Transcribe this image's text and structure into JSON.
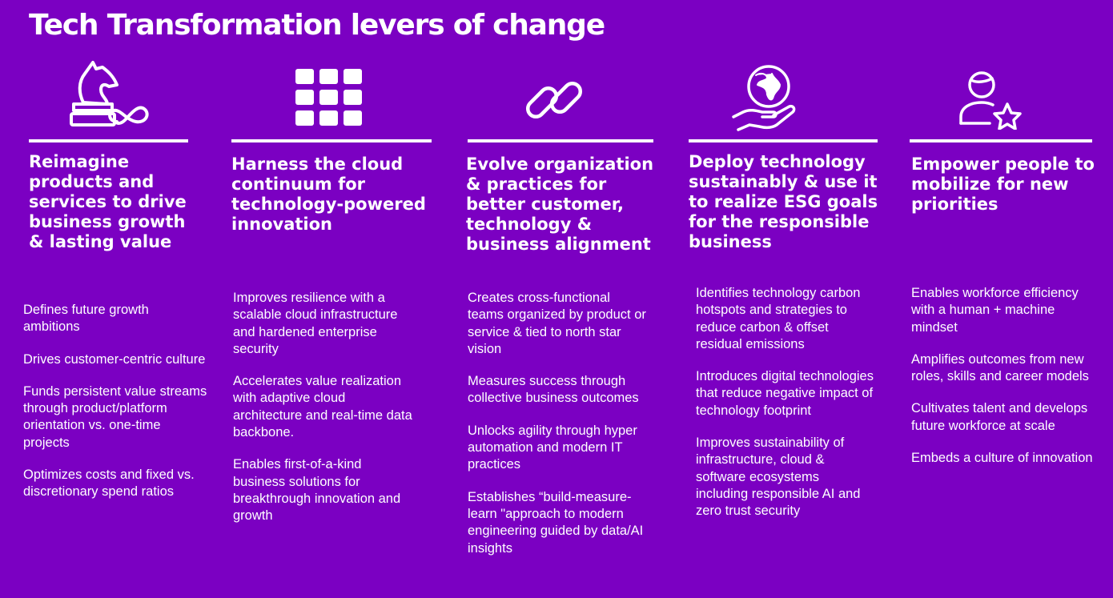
{
  "title": "Tech Transformation levers of change",
  "colors": {
    "background": "#7B00C2",
    "foreground": "#FFFFFF"
  },
  "columns": [
    {
      "icon": "chess-knight-infinity-icon",
      "heading": "Reimagine products and services to drive business growth & lasting value",
      "bullets": [
        "Defines future growth ambitions",
        "Drives customer-centric culture",
        "Funds persistent value streams through product/platform orientation vs. one-time projects",
        "Optimizes costs and fixed vs. discretionary spend ratios"
      ]
    },
    {
      "icon": "grid-squares-icon",
      "heading": "Harness the cloud continuum for technology-powered innovation",
      "bullets": [
        "Improves resilience  with a scalable cloud infrastructure  and hardened enterprise security",
        "Accelerates value realization with adaptive cloud architecture and real-time  data backbone.",
        "Enables first-of-a-kind business solutions for breakthrough innovation and growth"
      ]
    },
    {
      "icon": "chain-link-icon",
      "heading": "Evolve organization & practices for better customer, technology & business alignment",
      "bullets": [
        "Creates cross-functional teams organized by product or service  & tied to north star vision",
        "Measures success through collective business outcomes",
        "Unlocks agility through hyper automation and modern IT practices",
        "Establishes “build-measure-learn \"approach to modern engineering guided by data/AI insights"
      ]
    },
    {
      "icon": "globe-in-hand-icon",
      "heading": "Deploy technology sustainably & use it to realize ESG goals for the responsible business",
      "bullets": [
        "Identifies technology carbon hotspots and strategies to reduce carbon & offset residual emissions",
        "Introduces digital technologies that reduce negative impact of technology footprint",
        "Improves sustainability of infrastructure, cloud & software ecosystems including responsible AI and zero trust security"
      ]
    },
    {
      "icon": "person-star-icon",
      "heading": "Empower people to mobilize for  new priorities",
      "bullets": [
        "Enables workforce efficiency with a human + machine mindset",
        "Amplifies outcomes from new roles, skills and career models",
        "Cultivates talent and develops future workforce at scale",
        "Embeds a culture of innovation"
      ]
    }
  ]
}
